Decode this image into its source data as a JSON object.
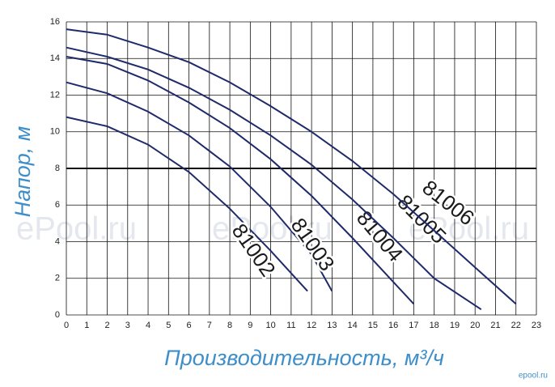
{
  "chart_data": {
    "type": "line",
    "xlabel": "Производительность, м³/ч",
    "ylabel": "Напор, м",
    "watermark": "ePool.ru",
    "corner_mark": "epool.ru",
    "xlim": [
      0,
      23
    ],
    "xticks": [
      0,
      1,
      2,
      3,
      4,
      5,
      6,
      7,
      8,
      9,
      10,
      11,
      12,
      13,
      14,
      15,
      16,
      17,
      18,
      19,
      20,
      21,
      22,
      23
    ],
    "ylim": [
      0,
      16
    ],
    "yticks": [
      0,
      2,
      4,
      6,
      8,
      10,
      12,
      14,
      16
    ],
    "grid": true,
    "series": [
      {
        "name": "81002",
        "color": "#1f2a6b",
        "x": [
          0,
          2,
          4,
          6,
          8,
          10,
          11.8
        ],
        "values": [
          10.8,
          10.3,
          9.3,
          7.8,
          5.8,
          3.5,
          1.3
        ]
      },
      {
        "name": "81003",
        "color": "#1f2a6b",
        "x": [
          0,
          2,
          4,
          6,
          8,
          10,
          12,
          13
        ],
        "values": [
          12.7,
          12.1,
          11.1,
          9.8,
          8.1,
          5.9,
          3.3,
          1.3
        ]
      },
      {
        "name": "81004",
        "color": "#1f2a6b",
        "x": [
          0,
          2,
          4,
          6,
          8,
          10,
          12,
          14,
          16,
          17
        ],
        "values": [
          14.1,
          13.7,
          12.8,
          11.6,
          10.2,
          8.5,
          6.5,
          4.2,
          1.8,
          0.6
        ]
      },
      {
        "name": "81005",
        "color": "#1f2a6b",
        "x": [
          0,
          2,
          4,
          6,
          8,
          10,
          12,
          14,
          16,
          18,
          20.3
        ],
        "values": [
          14.6,
          14.1,
          13.4,
          12.4,
          11.2,
          9.8,
          8.2,
          6.3,
          4.2,
          2.0,
          0.3
        ]
      },
      {
        "name": "81006",
        "color": "#1f2a6b",
        "x": [
          0,
          2,
          4,
          6,
          8,
          10,
          12,
          14,
          16,
          18,
          20,
          22
        ],
        "values": [
          15.6,
          15.3,
          14.6,
          13.8,
          12.7,
          11.4,
          10.0,
          8.4,
          6.6,
          4.6,
          2.6,
          0.6
        ]
      }
    ]
  }
}
